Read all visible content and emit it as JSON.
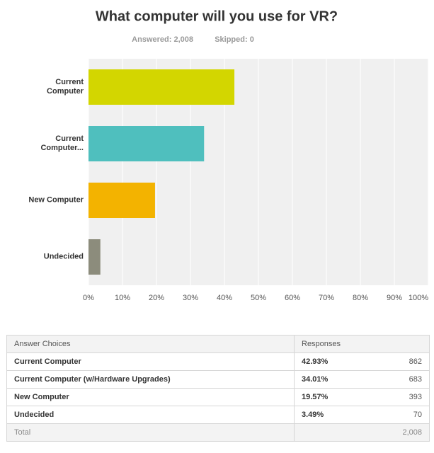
{
  "chart_data": {
    "type": "bar",
    "orientation": "horizontal",
    "title": "What computer will you use for VR?",
    "subtitle": [
      "Answered: 2,008",
      "Skipped: 0"
    ],
    "categories": [
      "Current Computer",
      "Current Computer...",
      "New Computer",
      "Undecided"
    ],
    "values": [
      42.93,
      34.01,
      19.57,
      3.49
    ],
    "colors": [
      "#d3d600",
      "#4fbfbe",
      "#f3b300",
      "#8c8c7c"
    ],
    "xlim": [
      0,
      100
    ],
    "xticks": [
      {
        "value": 0,
        "label": "0%"
      },
      {
        "value": 10,
        "label": "10%"
      },
      {
        "value": 20,
        "label": "20%"
      },
      {
        "value": 30,
        "label": "30%"
      },
      {
        "value": 40,
        "label": "40%"
      },
      {
        "value": 50,
        "label": "50%"
      },
      {
        "value": 60,
        "label": "60%"
      },
      {
        "value": 70,
        "label": "70%"
      },
      {
        "value": 80,
        "label": "80%"
      },
      {
        "value": 90,
        "label": "90%"
      },
      {
        "value": 100,
        "label": "100%"
      }
    ],
    "grid": true
  },
  "table": {
    "header": [
      "Answer Choices",
      "Responses"
    ],
    "rows": [
      [
        "Current Computer",
        "42.93%",
        862
      ],
      [
        "Current Computer (w/Hardware Upgrades)",
        "34.01%",
        683
      ],
      [
        "New Computer",
        "19.57%",
        393
      ],
      [
        "Undecided",
        "3.49%",
        70
      ]
    ],
    "total": [
      "Total",
      "2,008"
    ]
  }
}
